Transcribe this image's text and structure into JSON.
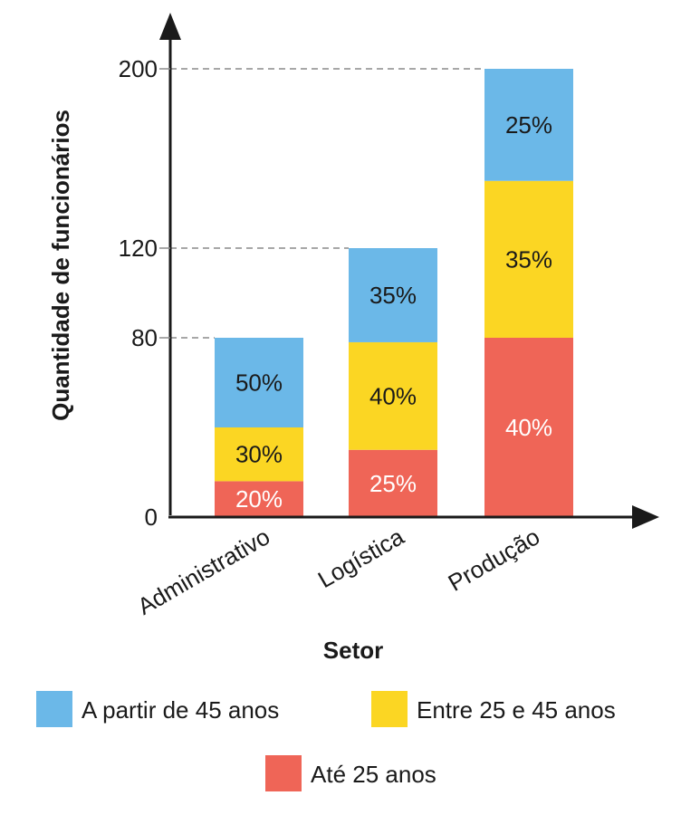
{
  "chart_data": {
    "type": "bar",
    "stacked": true,
    "title": "",
    "xlabel": "Setor",
    "ylabel": "Quantidade de funcionários",
    "categories": [
      "Administrativo",
      "Logística",
      "Produção"
    ],
    "totals": [
      80,
      120,
      200
    ],
    "yticks": [
      "0",
      "80",
      "120",
      "200"
    ],
    "ytick_values": [
      0,
      80,
      120,
      200
    ],
    "ylim": [
      0,
      200
    ],
    "grid": "dashed reference lines at bar totals",
    "legend_position": "bottom",
    "series": [
      {
        "name": "Até 25 anos",
        "color": "#ef6557",
        "label_color": "#ffffff",
        "values": [
          16,
          30,
          80
        ],
        "labels": [
          "20%",
          "25%",
          "40%"
        ]
      },
      {
        "name": "Entre 25 e 45 anos",
        "color": "#fbd623",
        "label_color": "#1a1a1a",
        "values": [
          24,
          48,
          70
        ],
        "labels": [
          "30%",
          "40%",
          "35%"
        ]
      },
      {
        "name": "A partir de 45 anos",
        "color": "#6bb8e8",
        "label_color": "#1a1a1a",
        "values": [
          40,
          42,
          50
        ],
        "labels": [
          "50%",
          "35%",
          "25%"
        ]
      }
    ],
    "legend_order": [
      "A partir de 45 anos",
      "Entre 25 e 45 anos",
      "Até 25 anos"
    ]
  }
}
